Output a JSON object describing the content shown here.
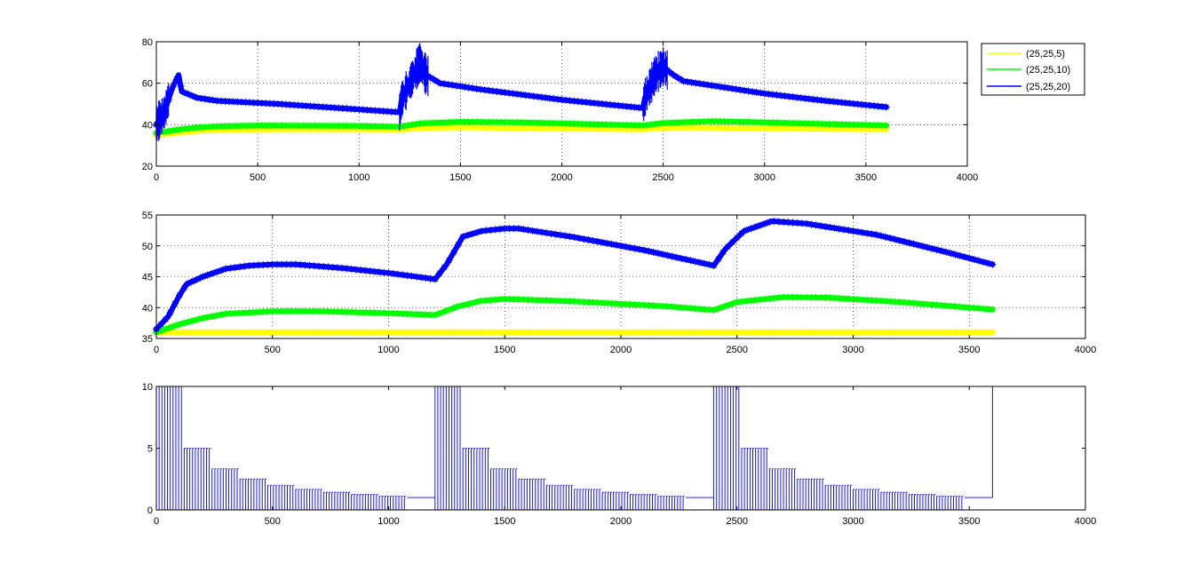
{
  "colors": {
    "series_yellow": "#ffff00",
    "series_green": "#00ff00",
    "series_blue": "#0000ff",
    "axes": "#000000",
    "background": "#ffffff"
  },
  "chart_data": [
    {
      "type": "line",
      "marker": "star",
      "xlim": [
        0,
        4000
      ],
      "ylim": [
        20,
        80
      ],
      "xticks": [
        "0",
        "500",
        "1000",
        "1500",
        "2000",
        "2500",
        "3000",
        "3500",
        "4000"
      ],
      "yticks": [
        "20",
        "40",
        "60",
        "80"
      ],
      "grid": "dotted",
      "legend_position": "outside-top-right",
      "series": [
        {
          "name": "(25,25,5)",
          "color": "#ffff00",
          "points": [
            [
              0,
              35
            ],
            [
              100,
              36
            ],
            [
              200,
              37
            ],
            [
              300,
              37.5
            ],
            [
              600,
              37.8
            ],
            [
              1000,
              37.8
            ],
            [
              1200,
              37.6
            ],
            [
              1300,
              38.3
            ],
            [
              1500,
              38.7
            ],
            [
              1800,
              38.3
            ],
            [
              2400,
              37.8
            ],
            [
              2500,
              38.5
            ],
            [
              2700,
              38.6
            ],
            [
              3000,
              38.2
            ],
            [
              3600,
              37.8
            ]
          ]
        },
        {
          "name": "(25,25,10)",
          "color": "#00ff00",
          "points": [
            [
              0,
              36
            ],
            [
              100,
              37.5
            ],
            [
              200,
              38.6
            ],
            [
              300,
              39.2
            ],
            [
              500,
              39.6
            ],
            [
              1000,
              39.4
            ],
            [
              1200,
              39
            ],
            [
              1300,
              40.6
            ],
            [
              1500,
              41.4
            ],
            [
              1800,
              41.1
            ],
            [
              2400,
              39.6
            ],
            [
              2500,
              40.8
            ],
            [
              2750,
              41.7
            ],
            [
              3000,
              41.1
            ],
            [
              3600,
              39.6
            ]
          ]
        },
        {
          "name": "(25,25,20)",
          "color": "#0000ff",
          "points": [
            [
              0,
              40
            ],
            [
              40,
              46
            ],
            [
              80,
              58
            ],
            [
              110,
              64
            ],
            [
              125,
              56
            ],
            [
              200,
              53
            ],
            [
              300,
              51.5
            ],
            [
              600,
              50
            ],
            [
              900,
              48
            ],
            [
              1200,
              46
            ],
            [
              1210,
              52
            ],
            [
              1260,
              62
            ],
            [
              1300,
              70
            ],
            [
              1330,
              64
            ],
            [
              1400,
              60
            ],
            [
              1600,
              57
            ],
            [
              2000,
              52
            ],
            [
              2400,
              48
            ],
            [
              2410,
              53
            ],
            [
              2460,
              64
            ],
            [
              2500,
              68
            ],
            [
              2550,
              64
            ],
            [
              2600,
              61
            ],
            [
              2800,
              58
            ],
            [
              3000,
              55
            ],
            [
              3300,
              51.5
            ],
            [
              3600,
              48.5
            ]
          ]
        }
      ]
    },
    {
      "type": "line",
      "marker": "star",
      "xlim": [
        0,
        4000
      ],
      "ylim": [
        35,
        55
      ],
      "xticks": [
        "0",
        "500",
        "1000",
        "1500",
        "2000",
        "2500",
        "3000",
        "3500",
        "4000"
      ],
      "yticks": [
        "35",
        "40",
        "45",
        "50",
        "55"
      ],
      "grid": "dotted",
      "series": [
        {
          "color": "#ffff00",
          "points": [
            [
              0,
              36
            ],
            [
              500,
              36
            ],
            [
              1000,
              36
            ],
            [
              1500,
              36
            ],
            [
              2000,
              36
            ],
            [
              2500,
              36
            ],
            [
              3000,
              36
            ],
            [
              3600,
              36
            ]
          ]
        },
        {
          "color": "#00ff00",
          "points": [
            [
              0,
              36
            ],
            [
              100,
              37.3
            ],
            [
              200,
              38.3
            ],
            [
              300,
              39
            ],
            [
              500,
              39.4
            ],
            [
              700,
              39.4
            ],
            [
              1000,
              39.1
            ],
            [
              1200,
              38.8
            ],
            [
              1300,
              40.2
            ],
            [
              1400,
              41.1
            ],
            [
              1500,
              41.4
            ],
            [
              1800,
              41
            ],
            [
              2200,
              40.2
            ],
            [
              2400,
              39.6
            ],
            [
              2500,
              40.9
            ],
            [
              2700,
              41.7
            ],
            [
              2900,
              41.6
            ],
            [
              3200,
              40.9
            ],
            [
              3600,
              39.7
            ]
          ]
        },
        {
          "color": "#0000ff",
          "points": [
            [
              0,
              36.5
            ],
            [
              50,
              38.5
            ],
            [
              100,
              42
            ],
            [
              130,
              43.8
            ],
            [
              200,
              45
            ],
            [
              300,
              46.3
            ],
            [
              400,
              46.8
            ],
            [
              500,
              47
            ],
            [
              600,
              47
            ],
            [
              800,
              46.4
            ],
            [
              1000,
              45.6
            ],
            [
              1200,
              44.6
            ],
            [
              1250,
              47
            ],
            [
              1320,
              51.5
            ],
            [
              1400,
              52.4
            ],
            [
              1500,
              52.8
            ],
            [
              1560,
              52.8
            ],
            [
              1800,
              51.4
            ],
            [
              2100,
              49.3
            ],
            [
              2400,
              46.8
            ],
            [
              2450,
              49.5
            ],
            [
              2530,
              52.4
            ],
            [
              2650,
              54
            ],
            [
              2800,
              53.6
            ],
            [
              3100,
              51.8
            ],
            [
              3400,
              49
            ],
            [
              3600,
              47
            ]
          ]
        }
      ]
    },
    {
      "type": "bar",
      "xlim": [
        0,
        4000
      ],
      "ylim": [
        0,
        10
      ],
      "xticks": [
        "0",
        "500",
        "1000",
        "1500",
        "2000",
        "2500",
        "3000",
        "3500",
        "4000"
      ],
      "yticks": [
        "0",
        "5",
        "10"
      ],
      "grid": "none",
      "color": "#0000ff",
      "note_values": "vertical stem bars; level steps 10, 5, 3.33, 2.5, 2, 1.67, 1.43, 1.25, 1.11 every 120 s, repeating each 1200 s",
      "levels": [
        10,
        5,
        3.33,
        2.5,
        2,
        1.67,
        1.43,
        1.25,
        1.11
      ],
      "period": 1200,
      "stem_step": 12,
      "final_value_at": 3600,
      "final_value": 10
    }
  ]
}
